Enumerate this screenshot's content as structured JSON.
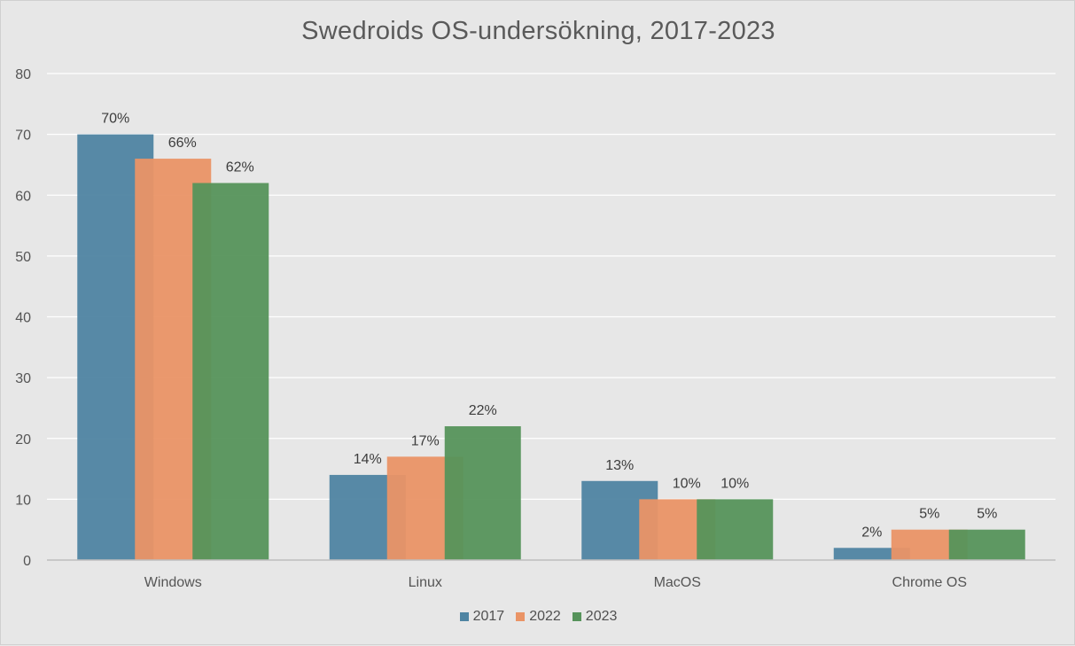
{
  "chart_data": {
    "type": "bar",
    "title": "Swedroids OS-undersökning, 2017-2023",
    "categories": [
      "Windows",
      "Linux",
      "MacOS",
      "Chrome OS"
    ],
    "series": [
      {
        "name": "2017",
        "values": [
          70,
          14,
          13,
          2
        ],
        "labels": [
          "70%",
          "14%",
          "13%",
          "2%"
        ],
        "color": "#4f84a2"
      },
      {
        "name": "2022",
        "values": [
          66,
          17,
          10,
          5
        ],
        "labels": [
          "66%",
          "17%",
          "10%",
          "5%"
        ],
        "color": "#ea9466"
      },
      {
        "name": "2023",
        "values": [
          62,
          22,
          10,
          5
        ],
        "labels": [
          "62%",
          "22%",
          "10%",
          "5%"
        ],
        "color": "#56935b"
      }
    ],
    "ylim": [
      0,
      80
    ],
    "yticks": [
      0,
      10,
      20,
      30,
      40,
      50,
      60,
      70,
      80
    ],
    "grid": true,
    "legend_position": "bottom",
    "bar_opacity": 0.95
  }
}
